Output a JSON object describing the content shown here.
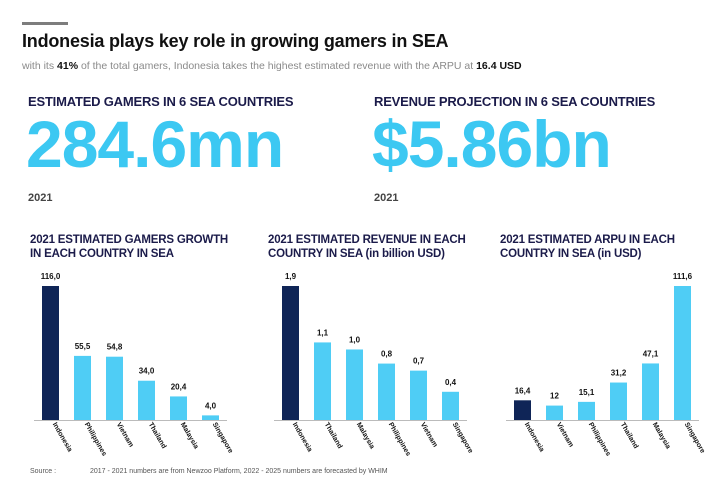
{
  "header": {
    "title": "Indonesia plays key role in growing gamers in SEA",
    "subtitle_pre": "with its ",
    "subtitle_share": "41%",
    "subtitle_mid": " of the total gamers, Indonesia takes the highest estimated revenue with the ARPU at ",
    "subtitle_arpu": "16.4 USD"
  },
  "kpis": [
    {
      "label": "ESTIMATED GAMERS IN 6 SEA COUNTRIES",
      "value": "284.6mn",
      "year": "2021"
    },
    {
      "label": "REVENUE PROJECTION IN 6 SEA COUNTRIES",
      "value": "$5.86bn",
      "year": "2021"
    }
  ],
  "colors": {
    "highlight": "#0f2557",
    "bar": "#4fcdf5",
    "kpi": "#3cc8f2",
    "axis": "#bbbbbb"
  },
  "chart_data": [
    {
      "type": "bar",
      "title_lines": [
        "2021 ESTIMATED GAMERS GROWTH",
        "IN EACH COUNTRY IN SEA"
      ],
      "categories": [
        "Indonesia",
        "Philippines",
        "Vietnam",
        "Thailand",
        "Malaysia",
        "Singapore"
      ],
      "values": [
        116.0,
        55.5,
        54.8,
        34.0,
        20.4,
        4.0
      ],
      "labels": [
        "116,0",
        "55,5",
        "54,8",
        "34,0",
        "20,4",
        "4,0"
      ],
      "highlight_index": 0,
      "ylim": [
        0,
        116.0
      ]
    },
    {
      "type": "bar",
      "title_lines": [
        "2021 ESTIMATED REVENUE IN EACH",
        "COUNTRY IN SEA (in billion USD)"
      ],
      "categories": [
        "Indonesia",
        "Thailand",
        "Malaysia",
        "Philippines",
        "Vietnam",
        "Singapore"
      ],
      "values": [
        1.9,
        1.1,
        1.0,
        0.8,
        0.7,
        0.4
      ],
      "labels": [
        "1,9",
        "1,1",
        "1,0",
        "0,8",
        "0,7",
        "0,4"
      ],
      "highlight_index": 0,
      "ylim": [
        0,
        1.9
      ]
    },
    {
      "type": "bar",
      "title_lines": [
        "2021 ESTIMATED ARPU IN EACH",
        "COUNTRY IN SEA (in USD)"
      ],
      "categories": [
        "Indonesia",
        "Vietnam",
        "Philippines",
        "Thailand",
        "Malaysia",
        "Singapore"
      ],
      "values": [
        16.4,
        12,
        15.1,
        31.2,
        47.1,
        111.6
      ],
      "labels": [
        "16,4",
        "12",
        "15,1",
        "31,2",
        "47,1",
        "111,6"
      ],
      "highlight_index": 0,
      "ylim": [
        0,
        111.6
      ]
    }
  ],
  "footer": {
    "source_label": "Source :",
    "note": "2017 - 2021 numbers are from Newzoo Platform, 2022 - 2025 numbers are forecasted by WHIM"
  }
}
